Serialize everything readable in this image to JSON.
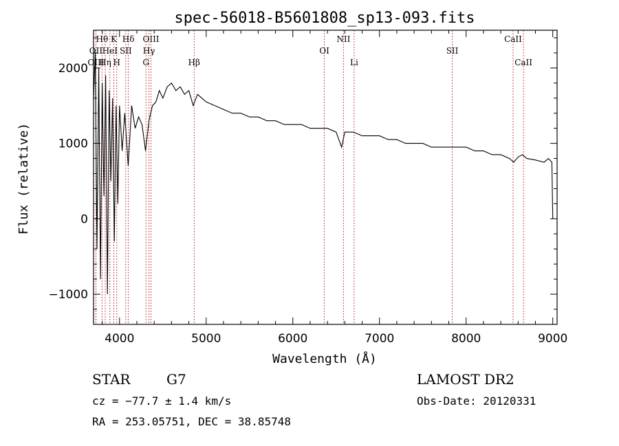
{
  "chart_data": {
    "type": "line",
    "title": "spec-56018-B5601808_sp13-093.fits",
    "xlabel": "Wavelength (Å)",
    "ylabel": "Flux (relative)",
    "xlim": [
      3700,
      9050
    ],
    "ylim": [
      -1400,
      2500
    ],
    "xticks": [
      4000,
      5000,
      6000,
      7000,
      8000,
      9000
    ],
    "yticks": [
      -1000,
      0,
      1000,
      2000
    ],
    "spectral_lines": [
      {
        "label": "Hθ",
        "x": 3798,
        "row": 0
      },
      {
        "label": "K",
        "x": 3934,
        "row": 0
      },
      {
        "label": "Hδ",
        "x": 4102,
        "row": 0
      },
      {
        "label": "OIII",
        "x": 4363,
        "row": 0
      },
      {
        "label": "NII",
        "x": 6584,
        "row": 0
      },
      {
        "label": "CaII",
        "x": 8542,
        "row": 0
      },
      {
        "label": "OII",
        "x": 3727,
        "row": 1
      },
      {
        "label": "HeI",
        "x": 3889,
        "row": 1
      },
      {
        "label": "SII",
        "x": 4072,
        "row": 1
      },
      {
        "label": "Hγ",
        "x": 4340,
        "row": 1
      },
      {
        "label": "OI",
        "x": 6364,
        "row": 1
      },
      {
        "label": "SII",
        "x": 7840,
        "row": 1
      },
      {
        "label": "OIII",
        "x": 3727,
        "row": 2
      },
      {
        "label": "Hη",
        "x": 3835,
        "row": 2
      },
      {
        "label": "H",
        "x": 3968,
        "row": 2
      },
      {
        "label": "G",
        "x": 4305,
        "row": 2
      },
      {
        "label": "Hβ",
        "x": 4861,
        "row": 2
      },
      {
        "label": "Li",
        "x": 6708,
        "row": 2
      },
      {
        "label": "CaII",
        "x": 8662,
        "row": 2
      }
    ],
    "series": [
      {
        "x": [
          3700,
          3720,
          3740,
          3760,
          3780,
          3800,
          3820,
          3840,
          3860,
          3880,
          3900,
          3920,
          3940,
          3960,
          3980,
          4000,
          4030,
          4060,
          4100,
          4140,
          4180,
          4220,
          4260,
          4300,
          4340,
          4380,
          4420,
          4460,
          4500,
          4550,
          4600,
          4650,
          4700,
          4750,
          4800,
          4850,
          4900,
          4950,
          5000,
          5100,
          5200,
          5300,
          5400,
          5500,
          5600,
          5700,
          5800,
          5900,
          6000,
          6100,
          6200,
          6300,
          6400,
          6500,
          6563,
          6600,
          6700,
          6800,
          6900,
          7000,
          7100,
          7200,
          7300,
          7400,
          7500,
          7600,
          7700,
          7800,
          7900,
          8000,
          8100,
          8200,
          8300,
          8400,
          8500,
          8550,
          8600,
          8650,
          8700,
          8800,
          8900,
          8950,
          8990,
          9000
        ],
        "y": [
          1600,
          2200,
          -400,
          2000,
          -800,
          1800,
          300,
          1900,
          -1000,
          1700,
          500,
          1600,
          -300,
          1500,
          200,
          1500,
          900,
          1400,
          700,
          1500,
          1200,
          1350,
          1250,
          900,
          1300,
          1500,
          1550,
          1700,
          1600,
          1750,
          1800,
          1700,
          1750,
          1650,
          1700,
          1500,
          1650,
          1600,
          1550,
          1500,
          1450,
          1400,
          1400,
          1350,
          1350,
          1300,
          1300,
          1250,
          1250,
          1250,
          1200,
          1200,
          1200,
          1150,
          950,
          1150,
          1150,
          1100,
          1100,
          1100,
          1050,
          1050,
          1000,
          1000,
          1000,
          950,
          950,
          950,
          950,
          950,
          900,
          900,
          850,
          850,
          800,
          750,
          820,
          850,
          800,
          780,
          750,
          800,
          750,
          0
        ]
      }
    ]
  },
  "info": {
    "class_label": "STAR",
    "subclass": "G7",
    "survey": "LAMOST DR2",
    "cz": "cz = −77.7 ± 1.4 km/s",
    "obs_date": "Obs-Date: 20120331",
    "coords": "RA = 253.05751, DEC =  38.85748"
  }
}
